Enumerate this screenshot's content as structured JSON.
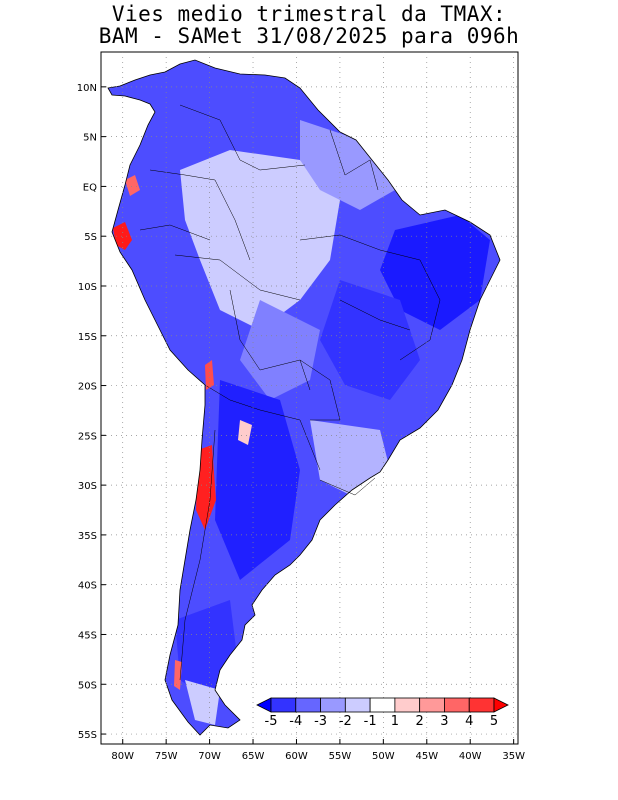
{
  "title": {
    "line1": "Vies medio trimestral da TMAX:",
    "line2": "BAM - SAMet 31/08/2025  para 096h"
  },
  "lat_labels": [
    "10N",
    "5N",
    "EQ",
    "5S",
    "10S",
    "15S",
    "20S",
    "25S",
    "30S",
    "35S",
    "40S",
    "45S",
    "50S",
    "55S"
  ],
  "lat_values": [
    10,
    5,
    0,
    -5,
    -10,
    -15,
    -20,
    -25,
    -30,
    -35,
    -40,
    -45,
    -50,
    -55
  ],
  "lon_labels": [
    "80W",
    "75W",
    "70W",
    "65W",
    "60W",
    "55W",
    "50W",
    "45W",
    "40W",
    "35W"
  ],
  "lon_values": [
    -80,
    -75,
    -70,
    -65,
    -60,
    -55,
    -50,
    -45,
    -40,
    -35
  ],
  "extent": {
    "lon_min": -82.5,
    "lon_max": -34.5,
    "lat_min": -56,
    "lat_max": 13.5
  },
  "colorbar": {
    "labels": [
      "-5",
      "-4",
      "-3",
      "-2",
      "-1",
      "1",
      "2",
      "3",
      "4",
      "5"
    ],
    "colors": [
      "#0000ff",
      "#3333ff",
      "#6666ff",
      "#9999ff",
      "#ccccff",
      "#ffffff",
      "#ffcccc",
      "#ff9999",
      "#ff6666",
      "#ff3333",
      "#ff0000"
    ]
  },
  "colors": {
    "land_bg": "#4d4dff",
    "border": "#000000",
    "grid": "#888888"
  }
}
